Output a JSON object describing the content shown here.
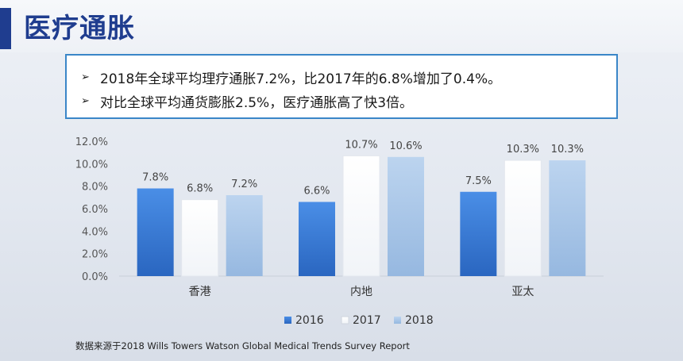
{
  "header": {
    "title": "医疗通胀"
  },
  "callout": {
    "lines": [
      "2018年全球平均理疗通胀7.2%，比2017年的6.8%增加了0.4%。",
      "对比全球平均通货膨胀2.5%，医疗通胀高了快3倍。"
    ]
  },
  "chart_data": {
    "type": "bar",
    "title": "",
    "xlabel": "",
    "ylabel": "",
    "categories": [
      "香港",
      "内地",
      "亚太"
    ],
    "series": [
      {
        "name": "2016",
        "values": [
          7.8,
          6.6,
          7.5
        ],
        "labels": [
          "7.8%",
          "6.6%",
          "7.5%"
        ],
        "color": "#3b7dd8"
      },
      {
        "name": "2017",
        "values": [
          6.8,
          10.7,
          10.3
        ],
        "labels": [
          "6.8%",
          "10.7%",
          "10.3%"
        ],
        "color": "#ffffff"
      },
      {
        "name": "2018",
        "values": [
          7.2,
          10.6,
          10.3
        ],
        "labels": [
          "7.2%",
          "10.6%",
          "10.3%"
        ],
        "color": "#a9c6e8"
      }
    ],
    "ylim": [
      0,
      12
    ],
    "yticks": [
      "0.0%",
      "2.0%",
      "4.0%",
      "6.0%",
      "8.0%",
      "10.0%",
      "12.0%"
    ],
    "grid": false,
    "legend_position": "bottom"
  },
  "source_note": "数据来源于2018 Wills Towers Watson Global Medical Trends Survey Report"
}
